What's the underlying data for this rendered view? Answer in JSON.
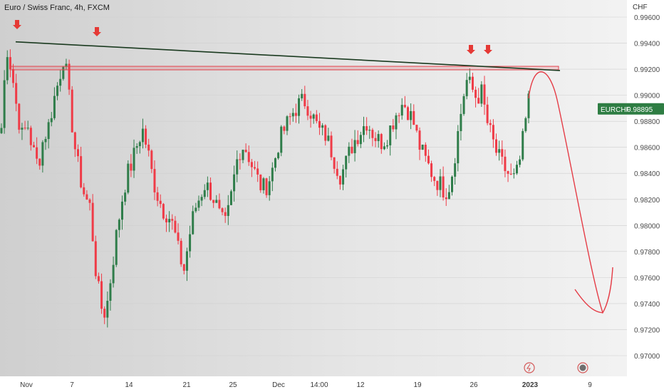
{
  "header": {
    "title": "Euro / Swiss Franc, 4h, FXCM",
    "currency": "CHF"
  },
  "colors": {
    "up": "#2f7d4a",
    "down": "#ef3b47",
    "trendline": "#1a3a1f",
    "zone": "#e3424c",
    "forecast": "#e53c46",
    "marker": "#e53935",
    "price_badge": "#2e7d43"
  },
  "chart_data": {
    "type": "candlestick",
    "symbol": "EURCHF",
    "timeframe": "4h",
    "last_price": "0.98895",
    "y_axis": {
      "ticks": [
        "0.97000",
        "0.97200",
        "0.97400",
        "0.97600",
        "0.97800",
        "0.98000",
        "0.98200",
        "0.98400",
        "0.98600",
        "0.98800",
        "0.99000",
        "0.99200",
        "0.99400",
        "0.99600"
      ],
      "ylim": [
        0.9695,
        0.9965
      ]
    },
    "x_axis": {
      "ticks": [
        "Nov",
        "7",
        "14",
        "21",
        "25",
        "Dec",
        "14:00",
        "12",
        "19",
        "26",
        "2023",
        "9"
      ]
    },
    "ohlc_path": [
      0.9875,
      0.9938,
      0.9918,
      0.9888,
      0.9868,
      0.9878,
      0.9858,
      0.9846,
      0.9866,
      0.9876,
      0.9896,
      0.9912,
      0.9932,
      0.9896,
      0.9862,
      0.9838,
      0.9822,
      0.9814,
      0.9768,
      0.9738,
      0.9732,
      0.9762,
      0.9792,
      0.9818,
      0.9838,
      0.9848,
      0.9862,
      0.9874,
      0.9858,
      0.9836,
      0.9822,
      0.9812,
      0.9808,
      0.9798,
      0.9778,
      0.9766,
      0.9792,
      0.9812,
      0.9822,
      0.9832,
      0.9826,
      0.9818,
      0.9804,
      0.98,
      0.9822,
      0.9848,
      0.9862,
      0.9858,
      0.9846,
      0.9836,
      0.9828,
      0.9832,
      0.9844,
      0.9862,
      0.9872,
      0.988,
      0.9888,
      0.9893,
      0.9896,
      0.989,
      0.988,
      0.9872,
      0.987,
      0.986,
      0.9848,
      0.9838,
      0.9848,
      0.986,
      0.9868,
      0.9874,
      0.988,
      0.9872,
      0.9866,
      0.9864,
      0.987,
      0.988,
      0.989,
      0.9894,
      0.9888,
      0.9878,
      0.9862,
      0.9852,
      0.9844,
      0.9836,
      0.9832,
      0.9826,
      0.9832,
      0.9858,
      0.9886,
      0.9912,
      0.9906,
      0.9898,
      0.9902,
      0.988,
      0.9866,
      0.9854,
      0.9846,
      0.984,
      0.9834,
      0.9842,
      0.9868,
      0.9896
    ],
    "annotations": {
      "trendline": {
        "from_price": 0.9941,
        "to_price": 0.9919
      },
      "resistance_zone": [
        0.99195,
        0.99222
      ],
      "arrows": 4,
      "forecast_target": 0.9733
    }
  }
}
